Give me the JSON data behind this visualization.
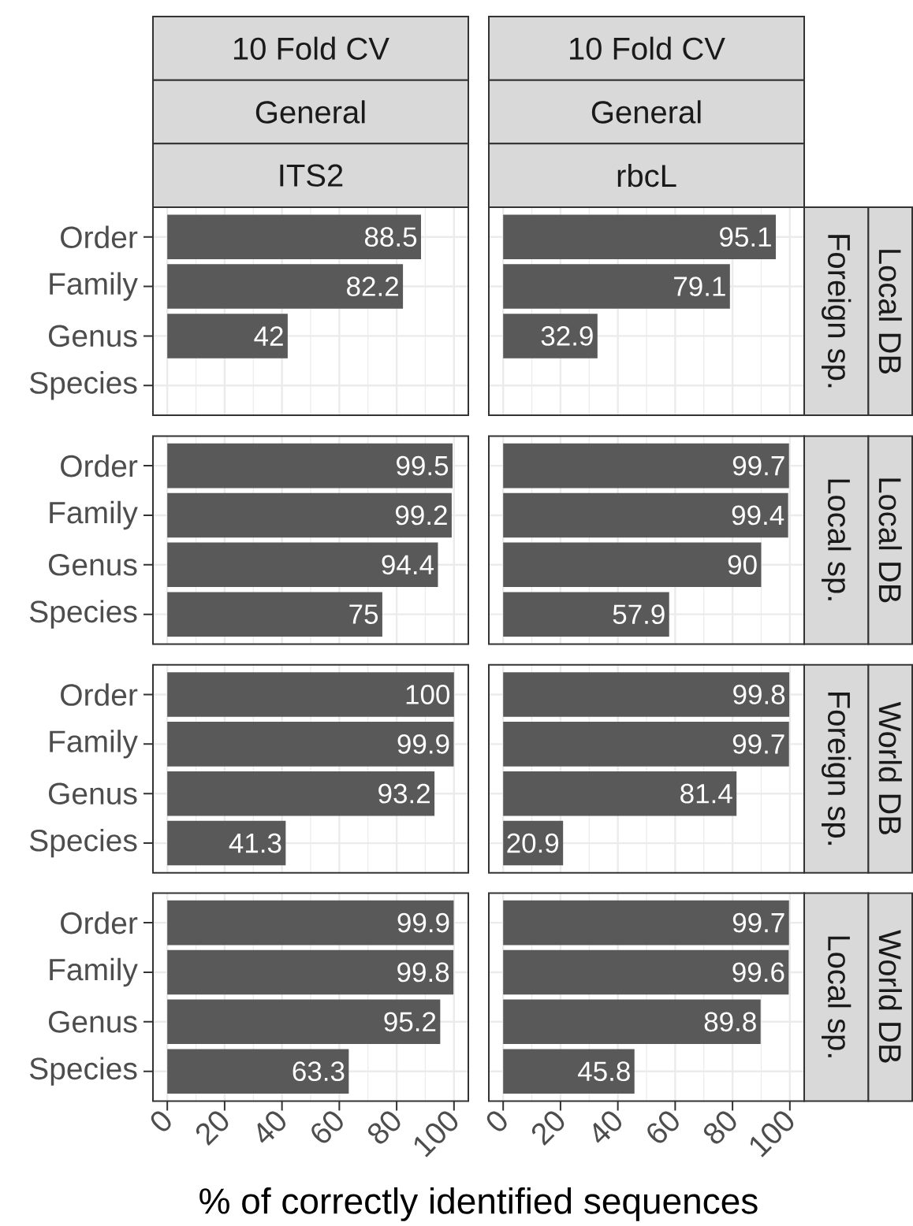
{
  "chart_data": [
    {
      "type": "bar",
      "orientation": "horizontal",
      "categories": [
        "Order",
        "Family",
        "Genus",
        "Species"
      ],
      "values": [
        88.5,
        82.2,
        42,
        null
      ],
      "color": "#595959",
      "xlim": [
        -5,
        105
      ],
      "xticks": [
        0,
        20,
        40,
        60,
        80,
        100
      ],
      "grid": true,
      "data_labels": true,
      "tick_labels": "y",
      "annotations": [
        "10 Fold CV",
        "General",
        "ITS2"
      ]
    },
    {
      "type": "bar",
      "orientation": "horizontal",
      "categories": [
        "Order",
        "Family",
        "Genus",
        "Species"
      ],
      "values": [
        95.1,
        79.1,
        32.9,
        null
      ],
      "color": "#595959",
      "xlim": [
        -5,
        105
      ],
      "xticks": [
        0,
        20,
        40,
        60,
        80,
        100
      ],
      "grid": true,
      "data_labels": true,
      "tick_labels": false,
      "annotations": [
        "10 Fold CV",
        "General",
        "rbcL",
        "Foreign sp.",
        "Local DB"
      ]
    },
    {
      "type": "bar",
      "orientation": "horizontal",
      "categories": [
        "Order",
        "Family",
        "Genus",
        "Species"
      ],
      "values": [
        99.5,
        99.2,
        94.4,
        75
      ],
      "color": "#595959",
      "xlim": [
        -5,
        105
      ],
      "xticks": [
        0,
        20,
        40,
        60,
        80,
        100
      ],
      "grid": true,
      "data_labels": true,
      "tick_labels": "y"
    },
    {
      "type": "bar",
      "orientation": "horizontal",
      "categories": [
        "Order",
        "Family",
        "Genus",
        "Species"
      ],
      "values": [
        99.7,
        99.4,
        90,
        57.9
      ],
      "color": "#595959",
      "xlim": [
        -5,
        105
      ],
      "xticks": [
        0,
        20,
        40,
        60,
        80,
        100
      ],
      "grid": true,
      "data_labels": true,
      "tick_labels": false,
      "annotations": [
        "Local sp.",
        "Local DB"
      ]
    },
    {
      "type": "bar",
      "orientation": "horizontal",
      "categories": [
        "Order",
        "Family",
        "Genus",
        "Species"
      ],
      "values": [
        100,
        99.9,
        93.2,
        41.3
      ],
      "color": "#595959",
      "xlim": [
        -5,
        105
      ],
      "xticks": [
        0,
        20,
        40,
        60,
        80,
        100
      ],
      "grid": true,
      "data_labels": true,
      "tick_labels": "y"
    },
    {
      "type": "bar",
      "orientation": "horizontal",
      "categories": [
        "Order",
        "Family",
        "Genus",
        "Species"
      ],
      "values": [
        99.8,
        99.7,
        81.4,
        20.9
      ],
      "color": "#595959",
      "xlim": [
        -5,
        105
      ],
      "xticks": [
        0,
        20,
        40,
        60,
        80,
        100
      ],
      "grid": true,
      "data_labels": true,
      "tick_labels": false,
      "annotations": [
        "Foreign sp.",
        "World DB"
      ]
    },
    {
      "type": "bar",
      "orientation": "horizontal",
      "categories": [
        "Order",
        "Family",
        "Genus",
        "Species"
      ],
      "values": [
        99.9,
        99.8,
        95.2,
        63.3
      ],
      "color": "#595959",
      "xlim": [
        -5,
        105
      ],
      "xticks": [
        0,
        20,
        40,
        60,
        80,
        100
      ],
      "grid": true,
      "data_labels": true,
      "xlabel": "% of correctly identified sequences"
    },
    {
      "type": "bar",
      "orientation": "horizontal",
      "categories": [
        "Order",
        "Family",
        "Genus",
        "Species"
      ],
      "values": [
        99.7,
        99.6,
        89.8,
        45.8
      ],
      "color": "#595959",
      "xlim": [
        -5,
        105
      ],
      "xticks": [
        0,
        20,
        40,
        60,
        80,
        100
      ],
      "grid": true,
      "data_labels": true,
      "tick_labels": "x",
      "annotations": [
        "Local sp.",
        "World DB"
      ]
    }
  ]
}
